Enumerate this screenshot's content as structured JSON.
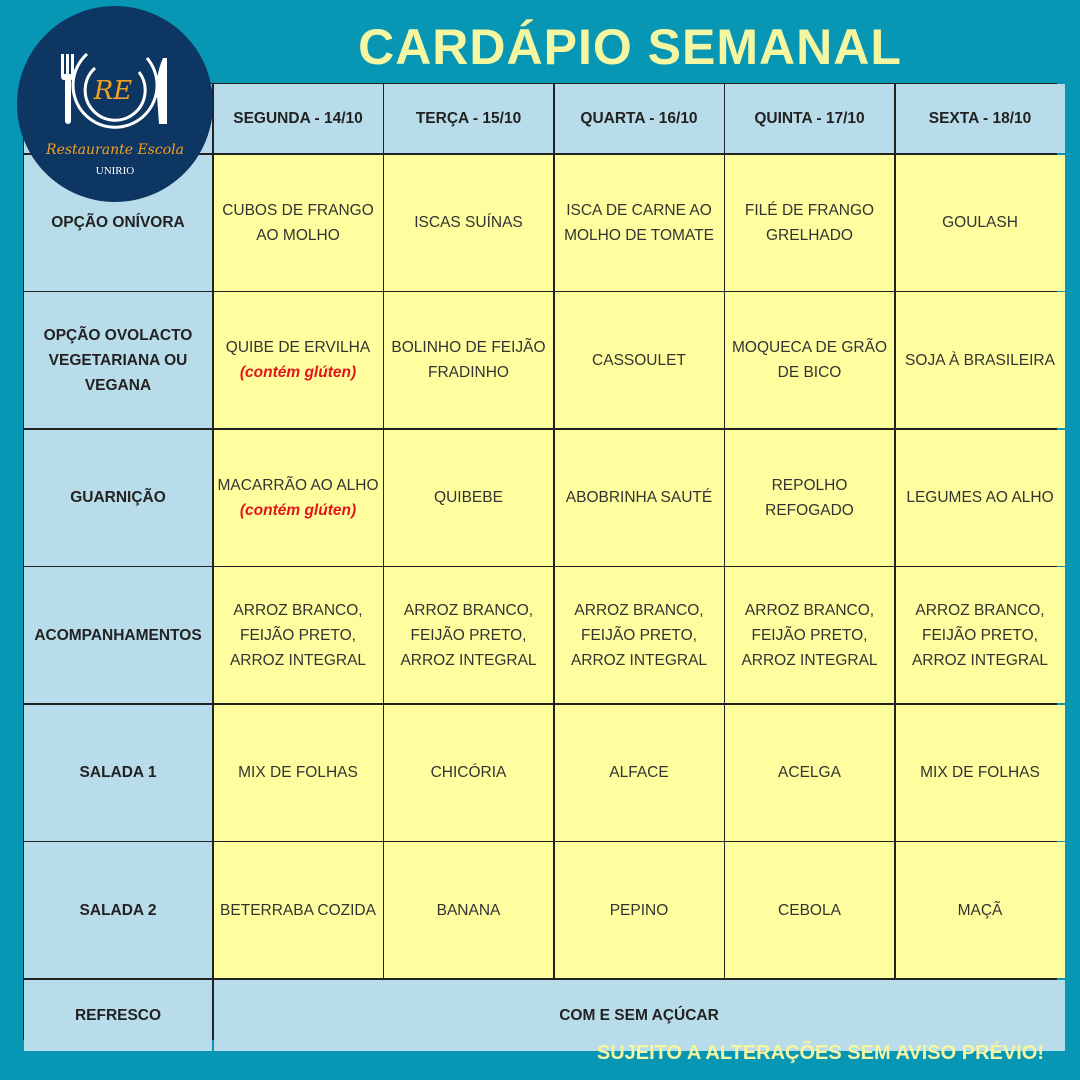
{
  "title": "CARDÁPIO SEMANAL",
  "logo": {
    "initials": "RE",
    "name": "Restaurante Escola",
    "org": "UNIRIO"
  },
  "days": [
    "SEGUNDA - 14/10",
    "TERÇA - 15/10",
    "QUARTA - 16/10",
    "QUINTA - 17/10",
    "SEXTA - 18/10"
  ],
  "rows": [
    {
      "label": "OPÇÃO ONÍVORA",
      "items": [
        {
          "text": "CUBOS DE FRANGO AO MOLHO"
        },
        {
          "text": "ISCAS SUÍNAS"
        },
        {
          "text": "ISCA DE CARNE AO MOLHO DE TOMATE"
        },
        {
          "text": "FILÉ DE FRANGO GRELHADO"
        },
        {
          "text": "GOULASH"
        }
      ]
    },
    {
      "label": "OPÇÃO OVOLACTO VEGETARIANA OU VEGANA",
      "items": [
        {
          "text": "QUIBE DE ERVILHA",
          "note": "(contém glúten)"
        },
        {
          "text": "BOLINHO DE FEIJÃO FRADINHO"
        },
        {
          "text": "CASSOULET"
        },
        {
          "text": "MOQUECA DE GRÃO DE BICO"
        },
        {
          "text": "SOJA À BRASILEIRA"
        }
      ]
    },
    {
      "label": "GUARNIÇÃO",
      "items": [
        {
          "text": "MACARRÃO AO ALHO",
          "note": "(contém glúten)"
        },
        {
          "text": "QUIBEBE"
        },
        {
          "text": "ABOBRINHA SAUTÉ"
        },
        {
          "text": "REPOLHO REFOGADO"
        },
        {
          "text": "LEGUMES AO ALHO"
        }
      ]
    },
    {
      "label": "ACOMPANHAMENTOS",
      "items": [
        {
          "text": "ARROZ BRANCO, FEIJÃO PRETO, ARROZ INTEGRAL"
        },
        {
          "text": "ARROZ BRANCO, FEIJÃO PRETO, ARROZ INTEGRAL"
        },
        {
          "text": "ARROZ BRANCO, FEIJÃO PRETO, ARROZ INTEGRAL"
        },
        {
          "text": "ARROZ BRANCO, FEIJÃO PRETO, ARROZ INTEGRAL"
        },
        {
          "text": "ARROZ BRANCO, FEIJÃO PRETO, ARROZ INTEGRAL"
        }
      ]
    },
    {
      "label": "SALADA 1",
      "items": [
        {
          "text": "MIX DE FOLHAS"
        },
        {
          "text": "CHICÓRIA"
        },
        {
          "text": "ALFACE"
        },
        {
          "text": "ACELGA"
        },
        {
          "text": "MIX DE FOLHAS"
        }
      ]
    },
    {
      "label": "SALADA 2",
      "items": [
        {
          "text": "BETERRABA COZIDA"
        },
        {
          "text": "BANANA"
        },
        {
          "text": "PEPINO"
        },
        {
          "text": "CEBOLA"
        },
        {
          "text": "MAÇÃ"
        }
      ]
    }
  ],
  "refresco": {
    "label": "REFRESCO",
    "value": "COM E SEM AÇÚCAR"
  },
  "footer": "SUJEITO A ALTERAÇÕES SEM AVISO PRÉVIO!",
  "colors": {
    "background": "#0797b4",
    "header": "#b8dce9",
    "cell": "#fefe9f",
    "title": "#f4f6a2",
    "logo": "#0d3662",
    "note": "#e3151b"
  }
}
